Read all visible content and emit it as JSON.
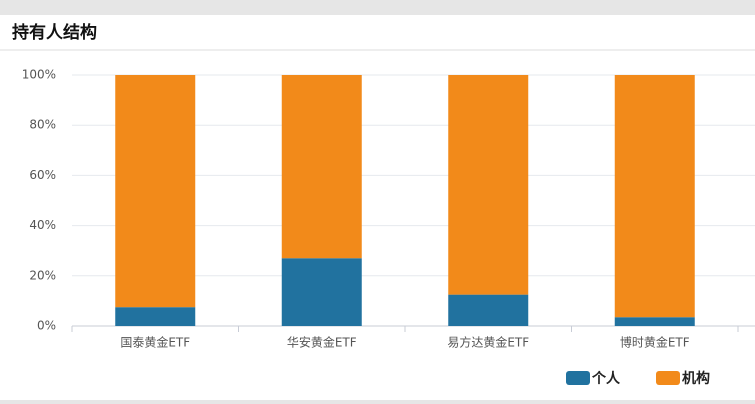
{
  "chart_data": {
    "type": "stacked_bar",
    "title": "持有人结构",
    "categories": [
      "国泰黄金ETF",
      "华安黄金ETF",
      "易方达黄金ETF",
      "博时黄金ETF"
    ],
    "series": [
      {
        "name": "个人",
        "color": "#21729f",
        "values": [
          7.5,
          27,
          12.5,
          3.5
        ]
      },
      {
        "name": "机构",
        "color": "#f28a1a",
        "values": [
          92.5,
          73,
          87.5,
          96.5
        ]
      }
    ],
    "ylim": [
      0,
      100
    ],
    "yticks": [
      {
        "value": 0,
        "label": "0%"
      },
      {
        "value": 20,
        "label": "20%"
      },
      {
        "value": 40,
        "label": "40%"
      },
      {
        "value": 60,
        "label": "60%"
      },
      {
        "value": 80,
        "label": "80%"
      },
      {
        "value": 100,
        "label": "100%"
      }
    ],
    "grid": true,
    "legend": "bottom-right"
  }
}
